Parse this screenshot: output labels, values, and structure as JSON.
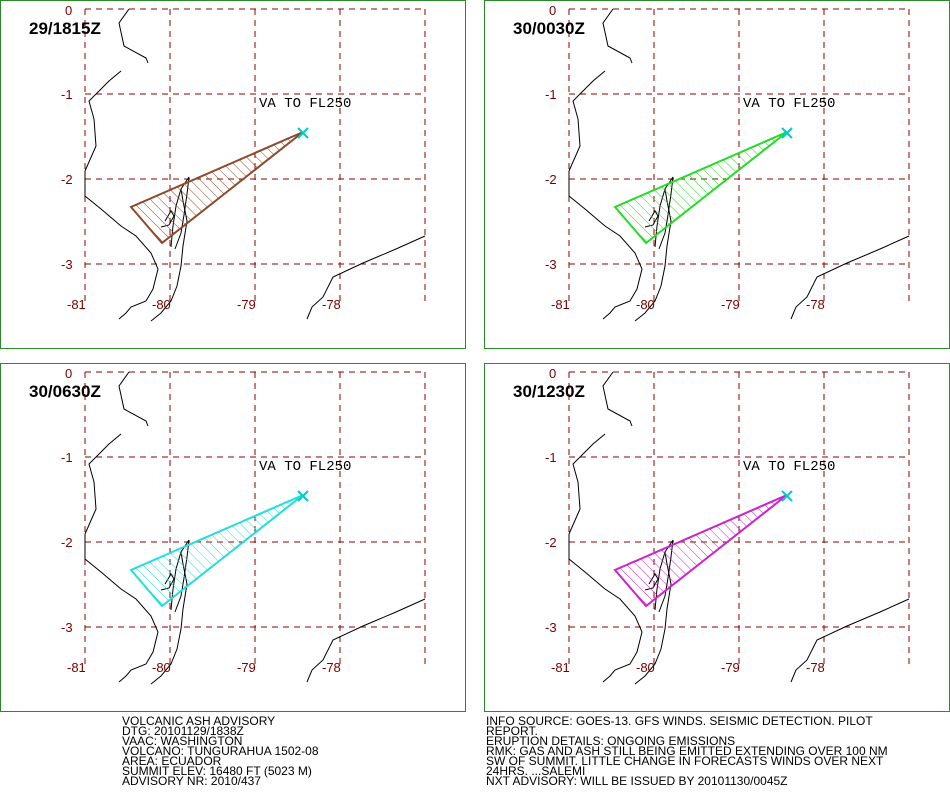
{
  "panels": [
    {
      "time": "29/1815Z",
      "polygon_color": "#8b4a2b"
    },
    {
      "time": "30/0030Z",
      "polygon_color": "#22dd22"
    },
    {
      "time": "30/0630Z",
      "polygon_color": "#22dddd"
    },
    {
      "time": "30/1230Z",
      "polygon_color": "#cc22cc"
    }
  ],
  "map": {
    "label": "VA TO FL250",
    "lat_ticks": [
      "0",
      "-1",
      "-2",
      "-3"
    ],
    "lon_ticks": [
      "-81",
      "-80",
      "-79",
      "-78"
    ],
    "grid_color": "#8b0000",
    "land_color": "#000000",
    "volcano_marker_color": "#00cccc"
  },
  "advisory_left": [
    "VOLCANIC ASH ADVISORY",
    "DTG: 20101129/1838Z",
    "VAAC: WASHINGTON",
    "VOLCANO: TUNGURAHUA 1502-08",
    "AREA: ECUADOR",
    "SUMMIT ELEV: 16480 FT (5023 M)",
    "ADVISORY NR: 2010/437"
  ],
  "advisory_right": [
    "INFO SOURCE: GOES-13. GFS WINDS. SEISMIC DETECTION. PILOT",
    "REPORT.",
    "ERUPTION DETAILS: ONGOING EMISSIONS",
    "RMK: GAS AND ASH STILL BEING EMITTED EXTENDING OVER 100 NM",
    "SW OF SUMMIT. LITTLE CHANGE IN FORECASTS WINDS OVER NEXT",
    "24HRS. ...SALEMI",
    "NXT ADVISORY: WILL BE ISSUED BY 20101130/0045Z"
  ]
}
